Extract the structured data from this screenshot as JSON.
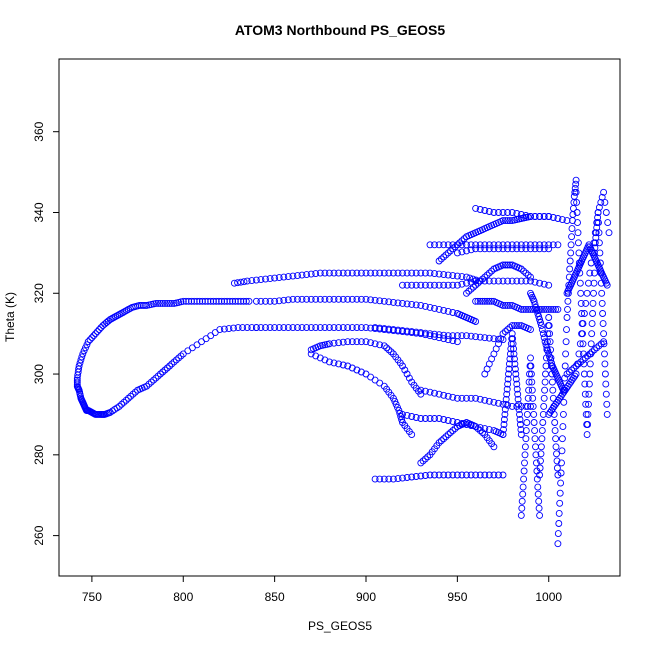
{
  "chart_data": {
    "type": "scatter",
    "title": "ATOM3 Northbound PS_GEOS5",
    "xlabel": "PS_GEOS5",
    "ylabel": "Theta (K)",
    "xlim": [
      732,
      1039
    ],
    "ylim": [
      250,
      378
    ],
    "xticks": [
      750,
      800,
      850,
      900,
      950,
      1000
    ],
    "yticks": [
      260,
      280,
      300,
      320,
      340,
      360
    ],
    "tick_labels_x": [
      "750",
      "800",
      "850",
      "900",
      "950",
      "1000"
    ],
    "tick_labels_y": [
      "260",
      "280",
      "300",
      "320",
      "340",
      "360"
    ],
    "grid": false,
    "legend": "none",
    "marker": "open-circle",
    "color": "#0000ff",
    "series": [
      {
        "x": [
          840,
          830,
          820,
          810,
          800,
          795,
          790,
          785,
          780,
          775,
          770,
          765,
          760,
          757,
          755,
          752,
          750,
          748,
          747,
          746,
          745,
          744,
          743,
          742,
          742,
          743,
          745,
          748,
          752,
          756,
          760,
          764,
          768,
          772,
          776,
          780,
          785,
          790,
          795,
          800,
          806,
          812,
          818,
          824,
          830,
          836
        ],
        "y": [
          311.5,
          311.5,
          311,
          308,
          305,
          303,
          301,
          299,
          297,
          296,
          294,
          292,
          290.5,
          290,
          290,
          290,
          290.5,
          291,
          291,
          292,
          293,
          294,
          296,
          297,
          299,
          302,
          305,
          308,
          310,
          312,
          313.5,
          314.5,
          315.5,
          316.5,
          317,
          317,
          317.5,
          317.5,
          317.5,
          318,
          318,
          318,
          318,
          318,
          318,
          318
        ]
      },
      {
        "x": [
          840,
          850,
          860,
          870,
          880,
          890,
          900,
          910,
          920,
          930,
          940,
          950,
          955,
          960
        ],
        "y": [
          318,
          318,
          318.5,
          318.5,
          318.5,
          318.5,
          318.5,
          318,
          317.5,
          317,
          316,
          315,
          314,
          313
        ]
      },
      {
        "x": [
          840,
          850,
          860,
          870,
          880,
          890,
          900,
          910,
          920,
          930,
          940,
          950
        ],
        "y": [
          311.5,
          311.5,
          311.5,
          311.5,
          311.5,
          311.5,
          311.5,
          311,
          310.5,
          310,
          309,
          308
        ]
      },
      {
        "x": [
          828,
          835,
          845,
          855,
          865,
          875,
          885,
          895,
          905,
          915,
          925,
          935,
          945,
          955,
          962
        ],
        "y": [
          322.5,
          323,
          323.5,
          324,
          324.5,
          325,
          325,
          325,
          325,
          325,
          325,
          325,
          324.5,
          324,
          323
        ]
      },
      {
        "x": [
          870,
          875,
          880,
          890,
          900,
          910,
          915,
          920,
          925,
          930
        ],
        "y": [
          306,
          307,
          307.5,
          308,
          308,
          307,
          305,
          302,
          298,
          295
        ]
      },
      {
        "x": [
          870,
          880,
          890,
          900,
          910,
          915,
          918,
          920,
          925
        ],
        "y": [
          305,
          303,
          302,
          300,
          297,
          294,
          291,
          288,
          285
        ]
      },
      {
        "x": [
          905,
          915,
          925,
          935,
          945,
          955,
          965,
          975
        ],
        "y": [
          311.5,
          311,
          310.5,
          310,
          309.5,
          309.5,
          309,
          308.5
        ]
      },
      {
        "x": [
          920,
          930,
          940,
          950,
          960,
          970,
          980,
          990,
          1000
        ],
        "y": [
          322,
          322,
          322,
          322,
          323,
          323,
          323,
          323,
          322
        ]
      },
      {
        "x": [
          905,
          915,
          925,
          935,
          945,
          955,
          965,
          975
        ],
        "y": [
          274,
          274,
          274.5,
          275,
          275,
          275,
          275,
          275
        ]
      },
      {
        "x": [
          930,
          935,
          940,
          945,
          950,
          955,
          960,
          965,
          970
        ],
        "y": [
          278,
          280,
          283,
          285,
          287,
          288,
          287,
          285,
          282
        ]
      },
      {
        "x": [
          920,
          930,
          940,
          950,
          960,
          970,
          975
        ],
        "y": [
          290,
          289,
          289,
          288,
          287,
          286,
          285
        ]
      },
      {
        "x": [
          930,
          940,
          950,
          960,
          970,
          980,
          990
        ],
        "y": [
          296,
          295,
          294,
          294,
          293,
          292,
          292
        ]
      },
      {
        "x": [
          940,
          945,
          950,
          955,
          960,
          965,
          970,
          975,
          980,
          985,
          990,
          1000
        ],
        "y": [
          328,
          330,
          332,
          334,
          335,
          336,
          337,
          338,
          338,
          338.5,
          339,
          339
        ]
      },
      {
        "x": [
          960,
          970,
          980,
          990,
          1000,
          1010
        ],
        "y": [
          341,
          340,
          340,
          339,
          339,
          338
        ]
      },
      {
        "x": [
          935,
          945,
          955,
          965,
          975,
          985,
          995,
          1005
        ],
        "y": [
          332,
          332,
          332,
          332,
          332,
          332,
          332,
          332
        ]
      },
      {
        "x": [
          950,
          960,
          970,
          980,
          990,
          1000
        ],
        "y": [
          330,
          331,
          331,
          331,
          331,
          331
        ]
      },
      {
        "x": [
          955,
          960,
          965,
          970,
          975,
          980,
          985,
          990
        ],
        "y": [
          320,
          322,
          324,
          326,
          327,
          327,
          326,
          324
        ]
      },
      {
        "x": [
          960,
          965,
          970,
          975,
          980,
          985,
          990,
          995,
          1000,
          1005
        ],
        "y": [
          318,
          318,
          318,
          317,
          317,
          316,
          316,
          316,
          316,
          316
        ]
      },
      {
        "x": [
          965,
          970,
          975,
          980,
          985,
          990
        ],
        "y": [
          300,
          305,
          310,
          312,
          312,
          311
        ]
      },
      {
        "x": [
          975,
          976,
          977,
          978,
          979,
          980,
          981,
          982,
          983,
          984,
          985
        ],
        "y": [
          285,
          290,
          295,
          300,
          305,
          310,
          305,
          300,
          295,
          290,
          285
        ]
      },
      {
        "x": [
          985,
          986,
          987,
          988,
          989,
          990,
          991,
          992,
          993,
          994,
          995
        ],
        "y": [
          265,
          272,
          280,
          288,
          296,
          304,
          296,
          288,
          280,
          272,
          265
        ]
      },
      {
        "x": [
          995,
          996,
          997,
          998,
          999,
          1000,
          1001,
          1002,
          1003,
          1004,
          1005
        ],
        "y": [
          275,
          282,
          290,
          298,
          306,
          314,
          306,
          298,
          290,
          282,
          275
        ]
      },
      {
        "x": [
          1005,
          1006,
          1007,
          1008,
          1009,
          1010,
          1011,
          1012,
          1013,
          1014,
          1015
        ],
        "y": [
          258,
          268,
          278,
          290,
          302,
          314,
          322,
          330,
          338,
          344,
          348
        ]
      },
      {
        "x": [
          1015,
          1016,
          1017,
          1018,
          1019,
          1020,
          1021,
          1022,
          1023,
          1024,
          1025
        ],
        "y": [
          345,
          335,
          325,
          315,
          305,
          295,
          285,
          295,
          305,
          315,
          325
        ]
      },
      {
        "x": [
          1025,
          1026,
          1027,
          1028,
          1029,
          1030,
          1031,
          1032
        ],
        "y": [
          330,
          335,
          340,
          330,
          320,
          310,
          300,
          290
        ]
      },
      {
        "x": [
          1010,
          1012,
          1014,
          1016,
          1018,
          1020,
          1022,
          1024,
          1026,
          1028,
          1030,
          1032
        ],
        "y": [
          320,
          322,
          324,
          326,
          328,
          330,
          332,
          330,
          328,
          326,
          324,
          322
        ]
      },
      {
        "x": [
          1010,
          1015,
          1020,
          1025,
          1030
        ],
        "y": [
          300,
          302,
          304,
          306,
          308
        ]
      },
      {
        "x": [
          990,
          992,
          994,
          996,
          998,
          1000,
          1002,
          1004,
          1006,
          1008
        ],
        "y": [
          320,
          318,
          315,
          312,
          308,
          305,
          302,
          300,
          298,
          296
        ]
      },
      {
        "x": [
          1000,
          1003,
          1006,
          1009,
          1012,
          1015,
          1018,
          1021,
          1024,
          1027,
          1030,
          1033
        ],
        "y": [
          290,
          292,
          294,
          296,
          298,
          300,
          310,
          320,
          330,
          340,
          345,
          335
        ]
      }
    ]
  }
}
